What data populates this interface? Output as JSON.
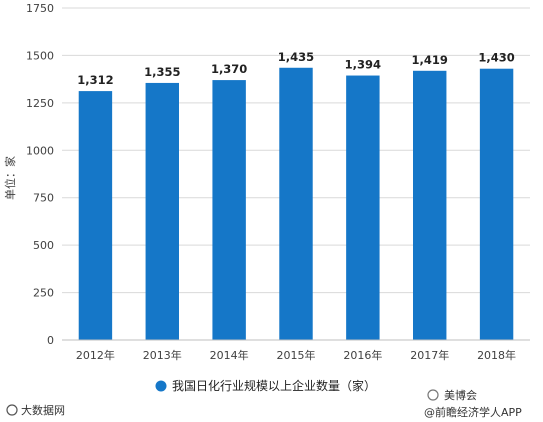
{
  "chart_data": {
    "type": "bar",
    "categories": [
      "2012年",
      "2013年",
      "2014年",
      "2015年",
      "2016年",
      "2017年",
      "2018年"
    ],
    "values": [
      1312,
      1355,
      1370,
      1435,
      1394,
      1419,
      1430
    ],
    "data_labels": [
      "1,312",
      "1,355",
      "1,370",
      "1,435",
      "1,394",
      "1,419",
      "1,430"
    ],
    "ylabel": "单位：家",
    "ylim": [
      0,
      1750
    ],
    "yticks": [
      0,
      250,
      500,
      750,
      1000,
      1250,
      1500,
      1750
    ],
    "grid": true,
    "legend": {
      "position": "bottom",
      "entries": [
        "我国日化行业规模以上企业数量（家）"
      ]
    },
    "bar_color": "#1577C8"
  },
  "watermark": {
    "bottom_left": "大数据网",
    "bottom_right": "@前瞻经济学人APP",
    "brand": "美博会"
  },
  "colors": {
    "grid": "#d9d9d9",
    "axis": "#bfbfbf",
    "bar": "#1577C8",
    "legend_marker": "#1577C8"
  }
}
